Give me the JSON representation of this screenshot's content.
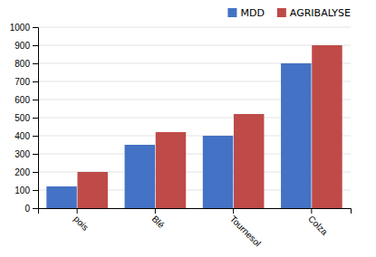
{
  "chart_data": {
    "type": "bar",
    "categories": [
      "pois",
      "Blé",
      "Tournesol",
      "Colza"
    ],
    "series": [
      {
        "name": "MDD",
        "color": "#4472C4",
        "values": [
          120,
          350,
          400,
          800
        ]
      },
      {
        "name": "AGRIBALYSE",
        "color": "#BE4B48",
        "values": [
          200,
          420,
          520,
          900
        ]
      }
    ],
    "ylim": [
      0,
      1000
    ],
    "yticks": [
      0,
      100,
      200,
      300,
      400,
      500,
      600,
      700,
      800,
      900,
      1000
    ],
    "grid": true,
    "legend": "upper right"
  }
}
